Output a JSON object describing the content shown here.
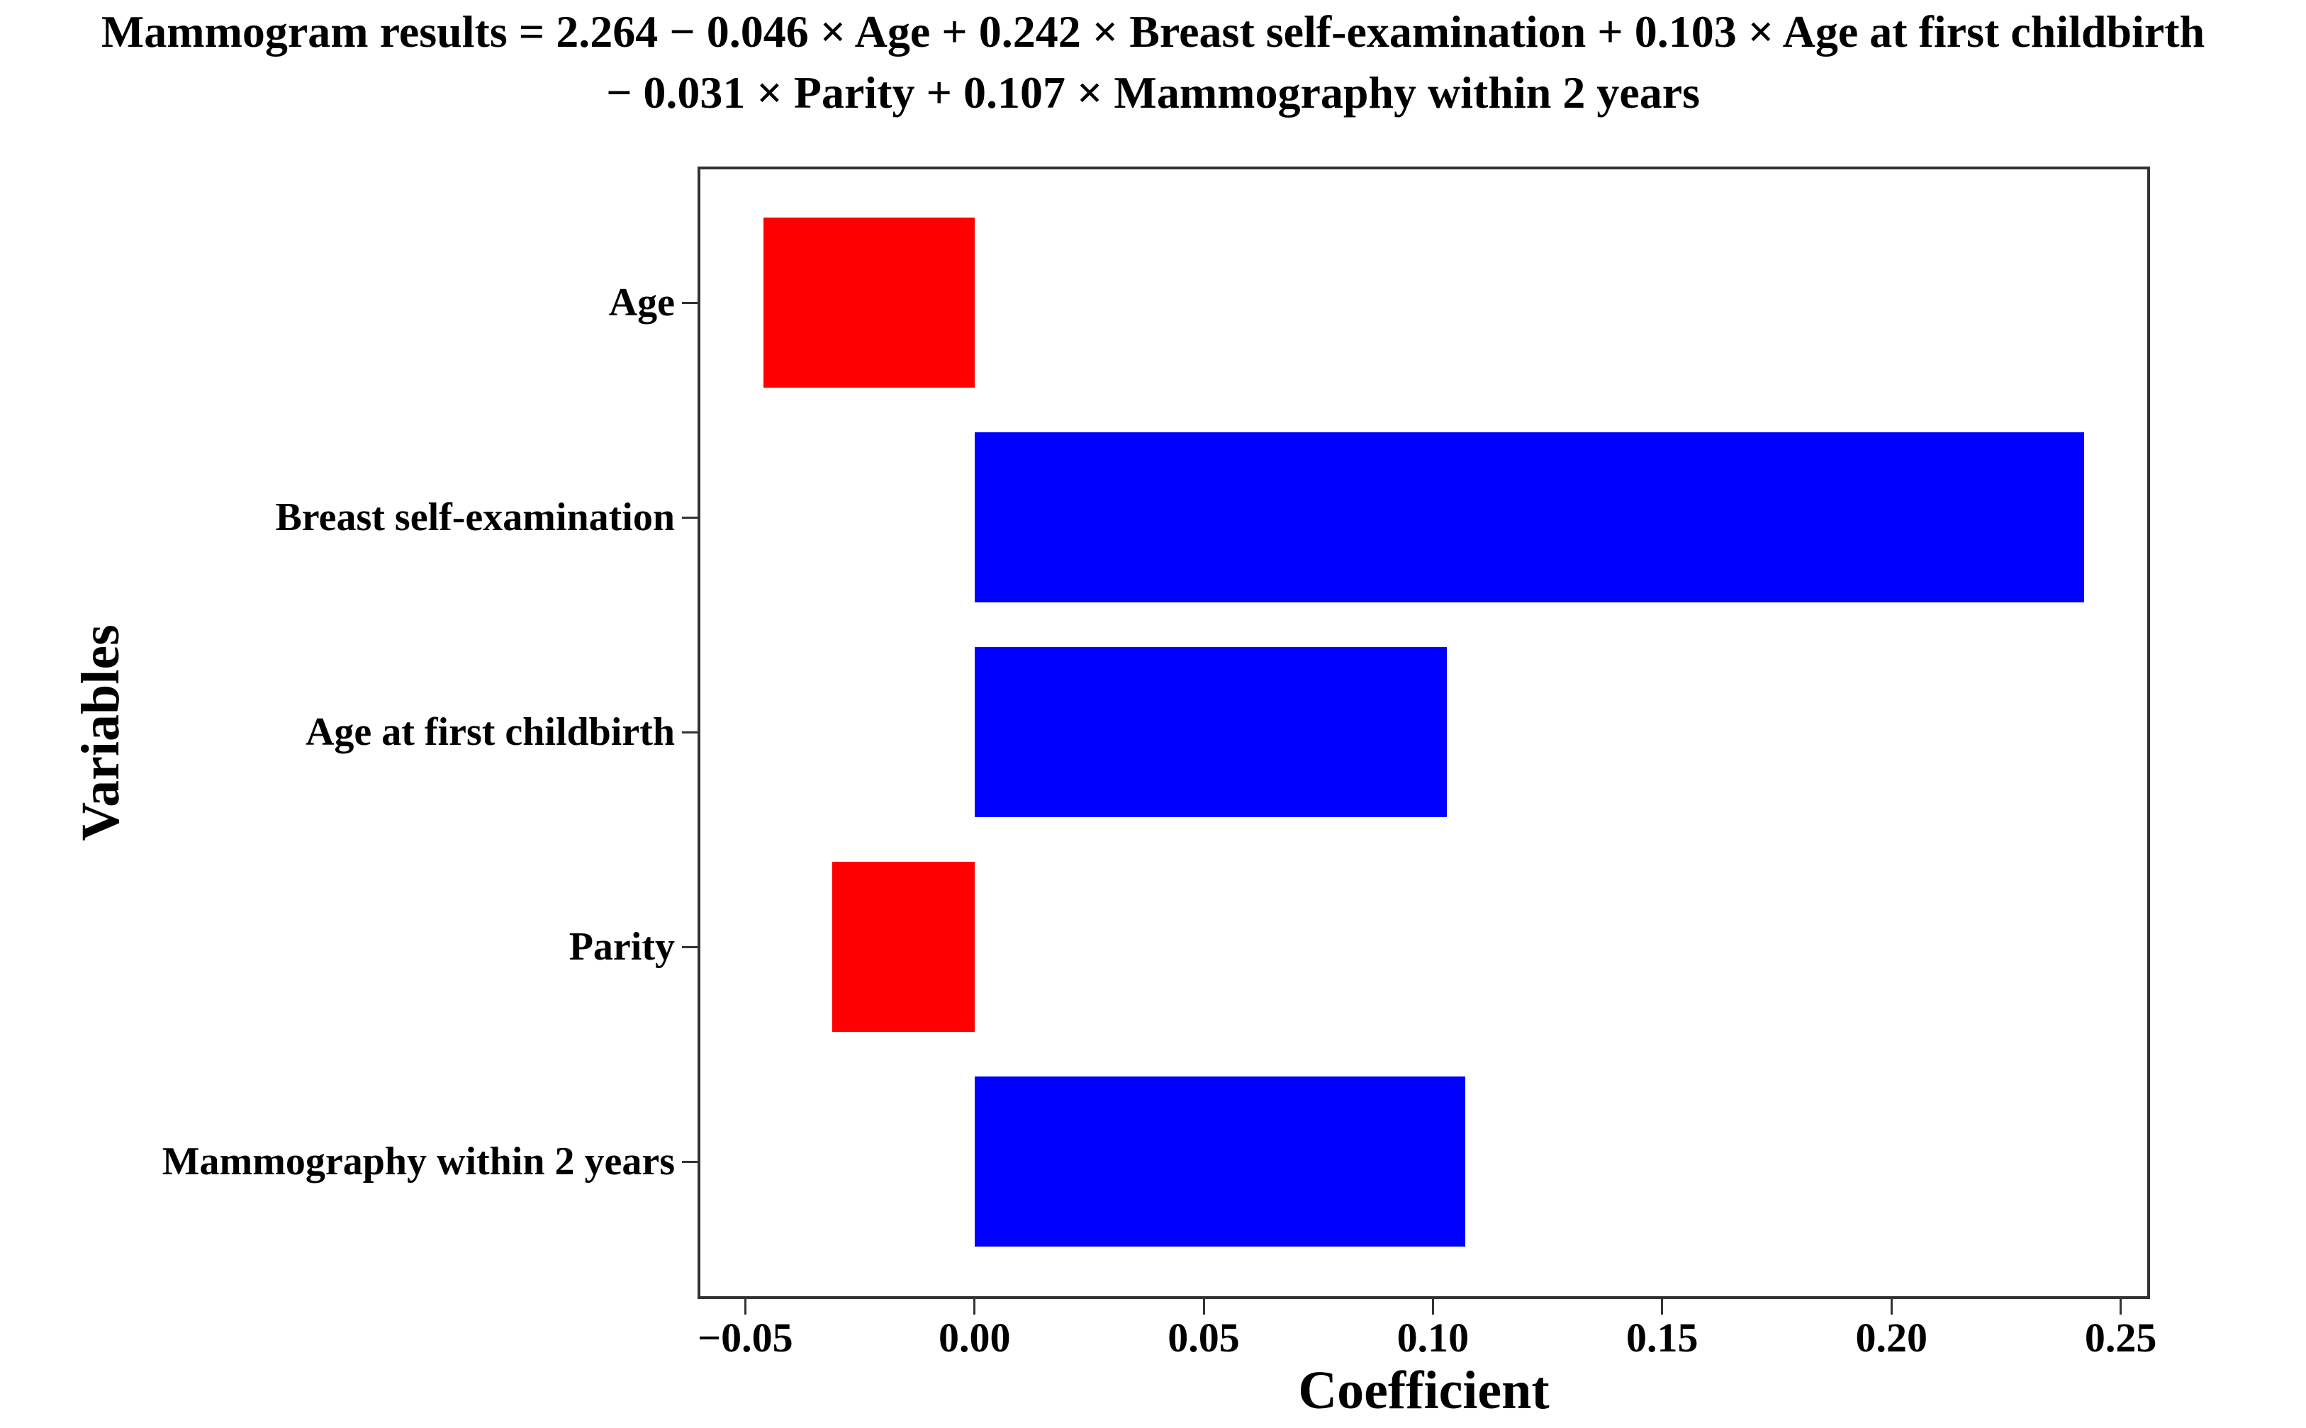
{
  "header": {
    "title_line1": "Mammogram results = 2.264 − 0.046 × Age + 0.242 × Breast self-examination + 0.103 × Age at first childbirth",
    "title_line2": "− 0.031 × Parity + 0.107 × Mammography within 2 years"
  },
  "chart_data": {
    "type": "bar",
    "orientation": "horizontal",
    "title": "Mammogram results = 2.264 − 0.046 × Age + 0.242 × Breast self-examination + 0.103 × Age at first childbirth − 0.031 × Parity + 0.107 × Mammography within 2 years",
    "xlabel": "Coefficient",
    "ylabel": "Variables",
    "categories": [
      "Age",
      "Breast self-examination",
      "Age at first childbirth",
      "Parity",
      "Mammography within 2 years"
    ],
    "values": [
      -0.046,
      0.242,
      0.103,
      -0.031,
      0.107
    ],
    "bar_colors": [
      "#ff0000",
      "#0000ff",
      "#0000ff",
      "#ff0000",
      "#0000ff"
    ],
    "positive_color": "#0000ff",
    "negative_color": "#ff0000",
    "xlim": [
      -0.0604,
      0.2564
    ],
    "x_tick_values": [
      -0.05,
      0.0,
      0.05,
      0.1,
      0.15,
      0.2,
      0.25
    ],
    "x_tick_labels": [
      "−0.05",
      "0.00",
      "0.05",
      "0.10",
      "0.15",
      "0.20",
      "0.25"
    ],
    "grid": false,
    "legend": "none",
    "axis_color": "#333333",
    "text_color": "#000000",
    "background_color": "#ffffff"
  }
}
